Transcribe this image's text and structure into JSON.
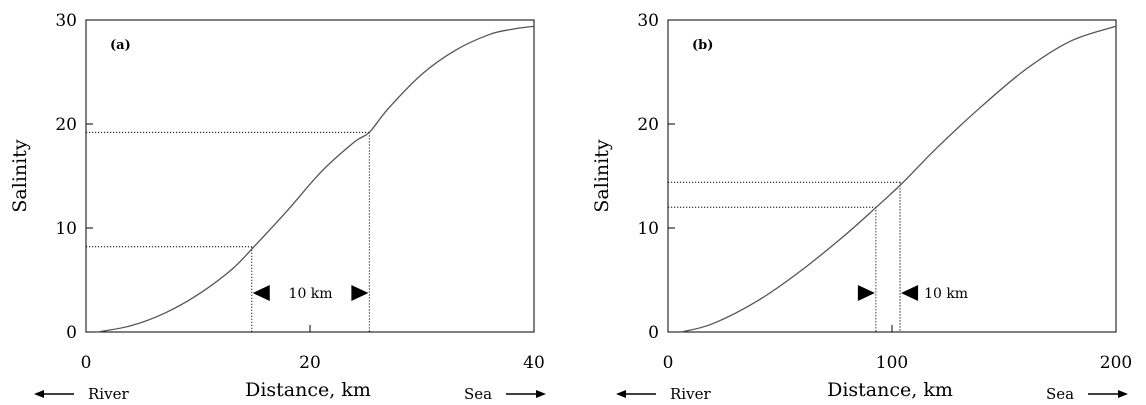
{
  "chart_data": [
    {
      "type": "line",
      "panel_label": "(a)",
      "xlabel": "Distance, km",
      "ylabel": "Salinity",
      "xlim": [
        0,
        40
      ],
      "ylim": [
        0,
        30
      ],
      "x_ticks": [
        0,
        20,
        40
      ],
      "y_ticks": [
        0,
        10,
        20,
        30
      ],
      "grid": false,
      "left_label": "River",
      "right_label": "Sea",
      "series": [
        {
          "x": [
            1,
            4,
            7,
            10,
            13,
            15,
            18,
            21,
            24,
            25.3,
            27,
            30,
            33,
            36,
            38,
            40
          ],
          "values": [
            0.0,
            0.6,
            1.8,
            3.6,
            6.0,
            8.2,
            11.7,
            15.4,
            18.3,
            19.2,
            21.5,
            24.8,
            27.1,
            28.6,
            29.1,
            29.4
          ]
        }
      ],
      "reference_lines": [
        {
          "x": 14.8,
          "y": 8.2
        },
        {
          "x": 25.3,
          "y": 19.2
        }
      ],
      "interval_annotation": {
        "label": "10 km",
        "x_start": 14.8,
        "x_end": 25.3
      }
    },
    {
      "type": "line",
      "panel_label": "(b)",
      "xlabel": "Distance, km",
      "ylabel": "Salinity",
      "xlim": [
        0,
        200
      ],
      "ylim": [
        0,
        30
      ],
      "x_ticks": [
        0,
        100,
        200
      ],
      "y_ticks": [
        0,
        10,
        20,
        30
      ],
      "grid": false,
      "left_label": "River",
      "right_label": "Sea",
      "series": [
        {
          "x": [
            6,
            20,
            40,
            60,
            80,
            93,
            105,
            120,
            140,
            160,
            180,
            200
          ],
          "values": [
            0.0,
            0.8,
            3.0,
            6.0,
            9.5,
            12.0,
            14.4,
            17.7,
            21.7,
            25.3,
            28.0,
            29.4
          ]
        }
      ],
      "reference_lines": [
        {
          "x": 92.8,
          "y": 12.0
        },
        {
          "x": 103.6,
          "y": 14.4
        }
      ],
      "interval_annotation": {
        "label": "10 km",
        "x_start": 92.8,
        "x_end": 103.6
      }
    }
  ]
}
